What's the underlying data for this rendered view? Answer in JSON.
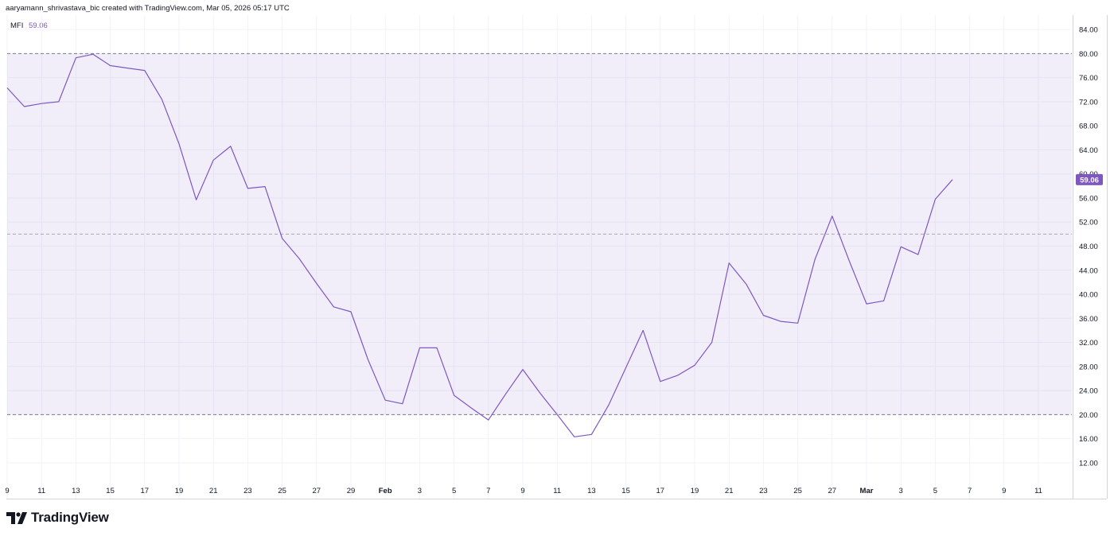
{
  "header": {
    "credit": "aaryamann_shrivastava_bic created with TradingView.com, Mar 05, 2026 05:17 UTC"
  },
  "legend": {
    "name": "MFI",
    "value": "59.06"
  },
  "brand": {
    "name": "TradingView",
    "icon": "tradingview-logo-icon"
  },
  "colors": {
    "line": "#7e57c2",
    "band_fill": "#7e57c2",
    "band_border": "#787b86",
    "grid": "#f0f3fa",
    "axis_text": "#131722",
    "price_label_bg": "#7e57c2"
  },
  "chart_data": {
    "type": "line",
    "series": [
      {
        "name": "MFI",
        "x": [
          "Jan 9",
          "Jan 10",
          "Jan 11",
          "Jan 12",
          "Jan 13",
          "Jan 14",
          "Jan 15",
          "Jan 16",
          "Jan 17",
          "Jan 18",
          "Jan 19",
          "Jan 20",
          "Jan 21",
          "Jan 22",
          "Jan 23",
          "Jan 24",
          "Jan 25",
          "Jan 26",
          "Jan 27",
          "Jan 28",
          "Jan 29",
          "Jan 30",
          "Jan 31",
          "Feb 1",
          "Feb 2",
          "Feb 3",
          "Feb 4",
          "Feb 5",
          "Feb 6",
          "Feb 7",
          "Feb 8",
          "Feb 9",
          "Feb 10",
          "Feb 11",
          "Feb 12",
          "Feb 13",
          "Feb 14",
          "Feb 15",
          "Feb 16",
          "Feb 17",
          "Feb 18",
          "Feb 19",
          "Feb 20",
          "Feb 21",
          "Feb 22",
          "Feb 23",
          "Feb 24",
          "Feb 25",
          "Feb 26",
          "Feb 27",
          "Feb 28",
          "Mar 1",
          "Mar 2",
          "Mar 3",
          "Mar 4",
          "Mar 5"
        ],
        "values": [
          74.3,
          71.2,
          71.7,
          72.0,
          79.3,
          79.9,
          78.0,
          77.6,
          77.2,
          72.4,
          65.0,
          55.7,
          62.3,
          64.6,
          57.6,
          57.9,
          49.3,
          45.9,
          41.8,
          37.9,
          37.1,
          29.1,
          22.4,
          21.8,
          31.1,
          31.1,
          23.2,
          21.1,
          19.1,
          23.4,
          27.5,
          23.6,
          20.0,
          16.3,
          16.7,
          21.6,
          27.8,
          34.0,
          25.5,
          26.5,
          28.2,
          32.0,
          45.2,
          41.7,
          36.5,
          35.5,
          35.2,
          45.8,
          53.0,
          45.5,
          38.4,
          38.9,
          47.9,
          46.6,
          55.8,
          59.06
        ]
      }
    ],
    "x_ticks": [
      "9",
      "11",
      "13",
      "15",
      "17",
      "19",
      "21",
      "23",
      "25",
      "27",
      "29",
      "Feb",
      "3",
      "5",
      "7",
      "9",
      "11",
      "13",
      "15",
      "17",
      "19",
      "21",
      "23",
      "25",
      "27",
      "Mar",
      "3",
      "5",
      "7",
      "9",
      "11"
    ],
    "y_ticks": [
      "84.00",
      "80.00",
      "76.00",
      "72.00",
      "68.00",
      "64.00",
      "60.00",
      "56.00",
      "52.00",
      "48.00",
      "44.00",
      "40.00",
      "36.00",
      "32.00",
      "28.00",
      "24.00",
      "20.00",
      "16.00",
      "12.00"
    ],
    "ylim": [
      9.6,
      86.4
    ],
    "band": {
      "upper": 80,
      "middle": 50,
      "lower": 20
    },
    "last_value_label": "59.06",
    "grid": true,
    "legend": "top-left"
  }
}
